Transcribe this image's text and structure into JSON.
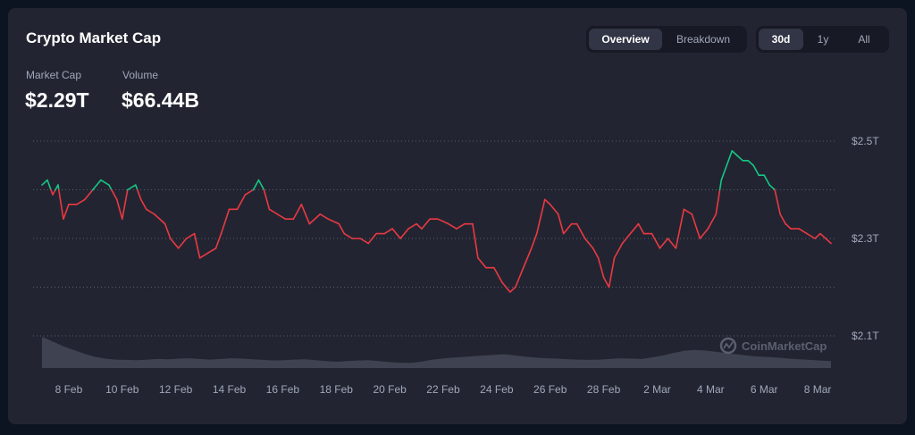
{
  "title": "Crypto Market Cap",
  "view_toggle": {
    "options": [
      "Overview",
      "Breakdown"
    ],
    "selected": "Overview"
  },
  "range_toggle": {
    "options": [
      "30d",
      "1y",
      "All"
    ],
    "selected": "30d"
  },
  "stats": [
    {
      "label": "Market Cap",
      "value": "$2.29T"
    },
    {
      "label": "Volume",
      "value": "$66.44B"
    }
  ],
  "watermark": "CoinMarketCap",
  "colors": {
    "up": "#16c784",
    "down": "#ea3943",
    "volume": "#3f4250",
    "grid": "#5a5e6b",
    "text": "#a1a7bb"
  },
  "chart_data": {
    "type": "line",
    "x_unit": "date (Feb 7 – Mar 9)",
    "y_label": "",
    "ylim": [
      2.08,
      2.52
    ],
    "y_ticks": [
      {
        "value": 2.5,
        "label": "$2.5T"
      },
      {
        "value": 2.3,
        "label": "$2.3T"
      },
      {
        "value": 2.1,
        "label": "$2.1T"
      }
    ],
    "x_ticks": [
      "8 Feb",
      "10 Feb",
      "12 Feb",
      "14 Feb",
      "16 Feb",
      "18 Feb",
      "20 Feb",
      "22 Feb",
      "24 Feb",
      "26 Feb",
      "28 Feb",
      "2 Mar",
      "4 Mar",
      "6 Mar",
      "8 Mar"
    ],
    "baseline": 2.4,
    "market_cap_T": [
      [
        7.0,
        2.41
      ],
      [
        7.2,
        2.42
      ],
      [
        7.4,
        2.39
      ],
      [
        7.6,
        2.41
      ],
      [
        7.8,
        2.34
      ],
      [
        8.0,
        2.37
      ],
      [
        8.3,
        2.37
      ],
      [
        8.6,
        2.38
      ],
      [
        8.9,
        2.4
      ],
      [
        9.2,
        2.42
      ],
      [
        9.5,
        2.41
      ],
      [
        9.8,
        2.38
      ],
      [
        10.0,
        2.34
      ],
      [
        10.2,
        2.4
      ],
      [
        10.5,
        2.41
      ],
      [
        10.7,
        2.38
      ],
      [
        10.9,
        2.36
      ],
      [
        11.2,
        2.35
      ],
      [
        11.6,
        2.33
      ],
      [
        11.8,
        2.3
      ],
      [
        12.1,
        2.28
      ],
      [
        12.4,
        2.3
      ],
      [
        12.7,
        2.31
      ],
      [
        12.9,
        2.26
      ],
      [
        13.2,
        2.27
      ],
      [
        13.5,
        2.28
      ],
      [
        13.7,
        2.31
      ],
      [
        14.0,
        2.36
      ],
      [
        14.3,
        2.36
      ],
      [
        14.6,
        2.39
      ],
      [
        14.9,
        2.4
      ],
      [
        15.1,
        2.42
      ],
      [
        15.3,
        2.4
      ],
      [
        15.5,
        2.36
      ],
      [
        15.8,
        2.35
      ],
      [
        16.1,
        2.34
      ],
      [
        16.4,
        2.34
      ],
      [
        16.7,
        2.37
      ],
      [
        17.0,
        2.33
      ],
      [
        17.4,
        2.35
      ],
      [
        17.7,
        2.34
      ],
      [
        18.1,
        2.33
      ],
      [
        18.3,
        2.31
      ],
      [
        18.6,
        2.3
      ],
      [
        18.9,
        2.3
      ],
      [
        19.2,
        2.29
      ],
      [
        19.5,
        2.31
      ],
      [
        19.8,
        2.31
      ],
      [
        20.1,
        2.32
      ],
      [
        20.4,
        2.3
      ],
      [
        20.7,
        2.32
      ],
      [
        21.0,
        2.33
      ],
      [
        21.2,
        2.32
      ],
      [
        21.5,
        2.34
      ],
      [
        21.8,
        2.34
      ],
      [
        22.2,
        2.33
      ],
      [
        22.5,
        2.32
      ],
      [
        22.8,
        2.33
      ],
      [
        23.1,
        2.33
      ],
      [
        23.3,
        2.26
      ],
      [
        23.6,
        2.24
      ],
      [
        23.9,
        2.24
      ],
      [
        24.2,
        2.21
      ],
      [
        24.5,
        2.19
      ],
      [
        24.7,
        2.2
      ],
      [
        25.0,
        2.24
      ],
      [
        25.3,
        2.28
      ],
      [
        25.5,
        2.31
      ],
      [
        25.8,
        2.38
      ],
      [
        26.0,
        2.37
      ],
      [
        26.3,
        2.35
      ],
      [
        26.5,
        2.31
      ],
      [
        26.8,
        2.33
      ],
      [
        27.0,
        2.33
      ],
      [
        27.3,
        2.3
      ],
      [
        27.6,
        2.28
      ],
      [
        27.8,
        2.26
      ],
      [
        28.0,
        2.22
      ],
      [
        28.2,
        2.2
      ],
      [
        28.4,
        2.26
      ],
      [
        28.7,
        2.29
      ],
      [
        29.0,
        2.31
      ],
      [
        29.3,
        2.33
      ],
      [
        29.5,
        2.31
      ],
      [
        29.8,
        2.31
      ],
      [
        30.1,
        2.28
      ],
      [
        30.4,
        2.3
      ],
      [
        30.7,
        2.28
      ],
      [
        31.0,
        2.36
      ],
      [
        31.3,
        2.35
      ],
      [
        31.6,
        2.3
      ],
      [
        31.9,
        2.32
      ],
      [
        32.2,
        2.35
      ],
      [
        32.4,
        2.42
      ],
      [
        32.6,
        2.45
      ],
      [
        32.8,
        2.48
      ],
      [
        33.0,
        2.47
      ],
      [
        33.2,
        2.46
      ],
      [
        33.4,
        2.46
      ],
      [
        33.6,
        2.45
      ],
      [
        33.8,
        2.43
      ],
      [
        34.0,
        2.43
      ],
      [
        34.2,
        2.41
      ],
      [
        34.4,
        2.4
      ],
      [
        34.6,
        2.35
      ],
      [
        34.8,
        2.33
      ],
      [
        35.0,
        2.32
      ],
      [
        35.3,
        2.32
      ],
      [
        35.6,
        2.31
      ],
      [
        35.9,
        2.3
      ],
      [
        36.1,
        2.31
      ],
      [
        36.3,
        2.3
      ],
      [
        36.5,
        2.29
      ]
    ],
    "volume_relative": [
      1.0,
      0.85,
      0.7,
      0.58,
      0.46,
      0.36,
      0.3,
      0.27,
      0.26,
      0.25,
      0.27,
      0.29,
      0.28,
      0.3,
      0.31,
      0.29,
      0.27,
      0.29,
      0.31,
      0.3,
      0.28,
      0.26,
      0.24,
      0.25,
      0.27,
      0.28,
      0.25,
      0.22,
      0.2,
      0.22,
      0.24,
      0.25,
      0.22,
      0.19,
      0.17,
      0.16,
      0.2,
      0.26,
      0.3,
      0.33,
      0.35,
      0.38,
      0.4,
      0.42,
      0.44,
      0.4,
      0.36,
      0.33,
      0.31,
      0.3,
      0.28,
      0.27,
      0.26,
      0.27,
      0.29,
      0.31,
      0.3,
      0.29,
      0.34,
      0.4,
      0.48,
      0.55,
      0.58,
      0.56,
      0.52,
      0.48,
      0.44,
      0.4,
      0.37,
      0.35,
      0.33,
      0.3,
      0.28,
      0.26,
      0.24,
      0.22
    ]
  }
}
